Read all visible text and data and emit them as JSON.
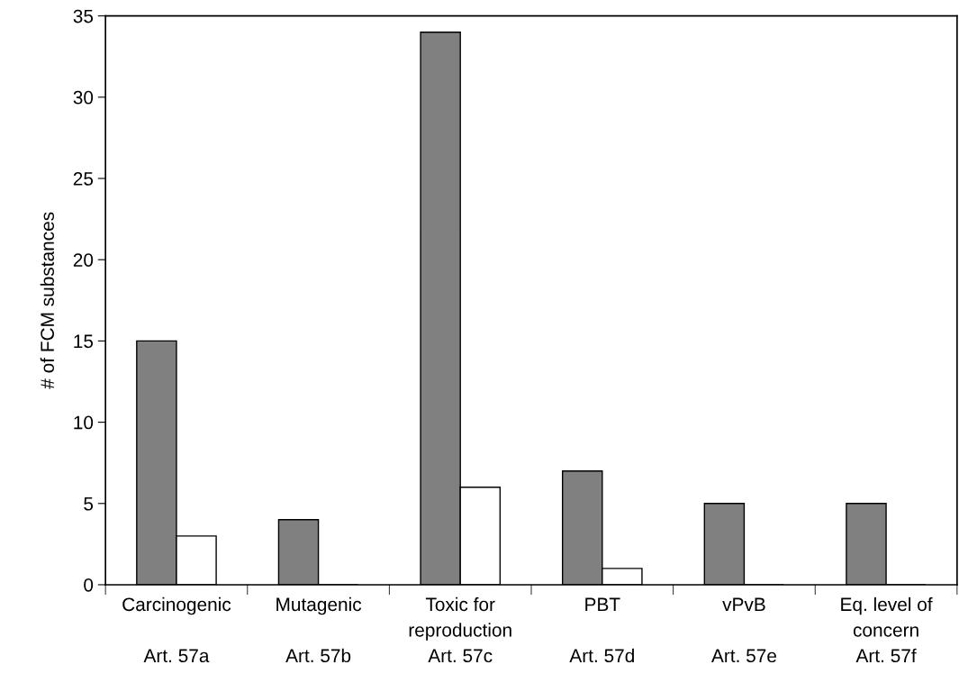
{
  "chart_data": {
    "type": "bar",
    "ylabel": "# of FCM substances",
    "categories": [
      "Carcinogenic\n\nArt. 57a",
      "Mutagenic\n\nArt. 57b",
      "Toxic for\nreproduction\nArt. 57c",
      "PBT\n\nArt. 57d",
      "vPvB\n\nArt. 57e",
      "Eq. level of\nconcern\nArt. 57f"
    ],
    "series": [
      {
        "color": "#808080",
        "values": [
          15,
          4,
          34,
          7,
          5,
          5
        ]
      },
      {
        "color": "#ffffff",
        "values": [
          3,
          0,
          6,
          1,
          0,
          0
        ]
      }
    ],
    "ylim": [
      0,
      35
    ],
    "yticks": [
      0,
      5,
      10,
      15,
      20,
      25,
      30,
      35
    ],
    "grid": false,
    "legend": false
  }
}
